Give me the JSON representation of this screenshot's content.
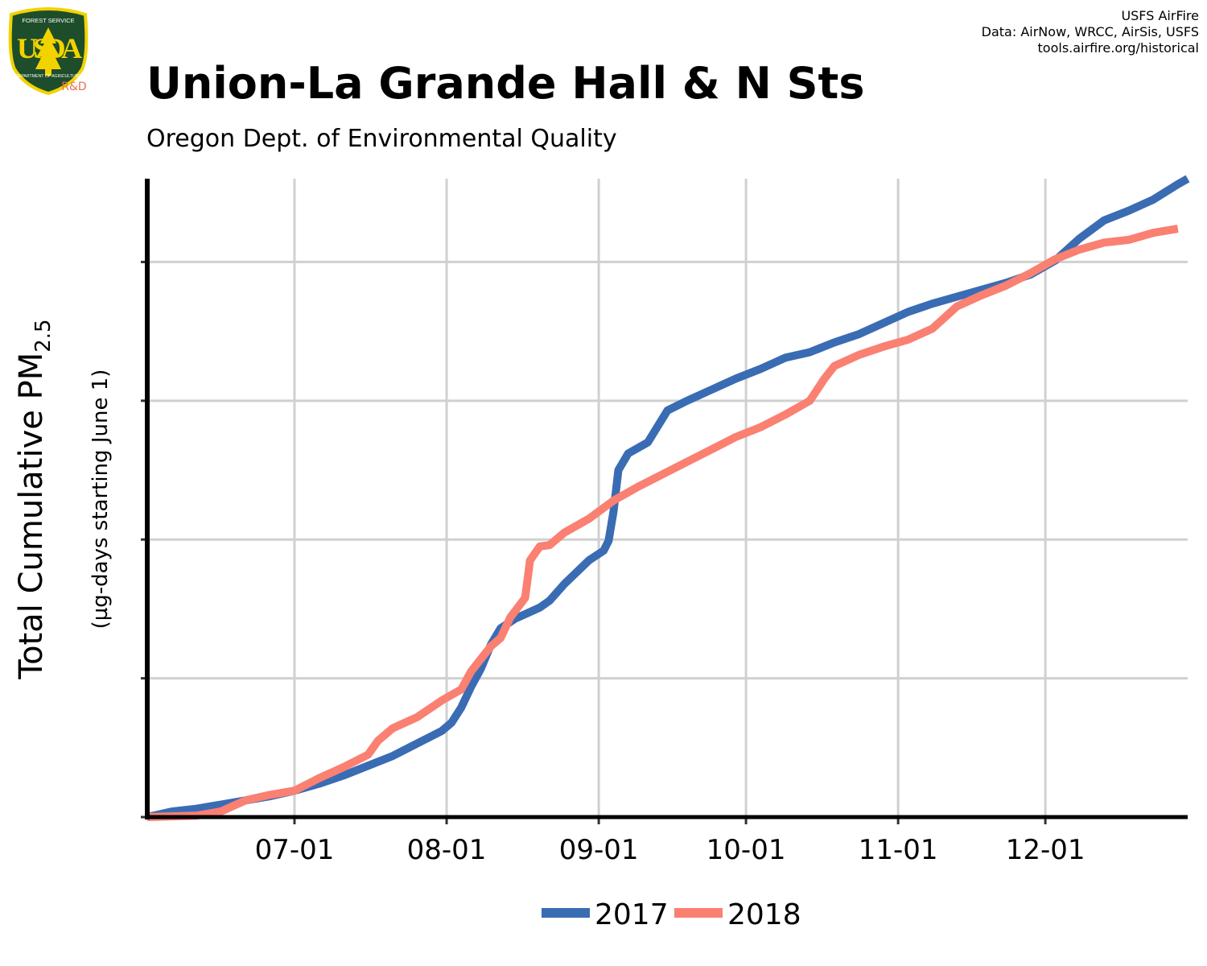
{
  "logo": {
    "top_text": "FOREST SERVICE",
    "letters": "USDA",
    "bottom_text": "DEPARTMENT OF AGRICULTURE",
    "badge": "R&D",
    "colors": {
      "shield": "#1e4d2b",
      "border": "#f2d300",
      "badge": "#e76f51"
    }
  },
  "credits": [
    "USFS AirFire",
    "Data: AirNow, WRCC, AirSis, USFS",
    "tools.airfire.org/historical"
  ],
  "title": "Union-La Grande Hall & N Sts",
  "subtitle": "Oregon Dept. of Environmental Quality",
  "chart_data": {
    "type": "line",
    "ylabel_main": "Total Cumulative PM",
    "ylabel_sub": "2.5",
    "ylabel_units": "(µg-days starting June 1)",
    "x_ticks": [
      "07-01",
      "08-01",
      "09-01",
      "10-01",
      "11-01",
      "12-01"
    ],
    "x_tick_days": [
      30,
      61,
      92,
      122,
      153,
      183
    ],
    "xlim": [
      0,
      212
    ],
    "ylim": [
      0,
      4600
    ],
    "y_gridlines": [
      0,
      1000,
      2000,
      3000,
      4000
    ],
    "grid": true,
    "legend": "bottom",
    "series": [
      {
        "name": "2017",
        "color": "#3a6cb4",
        "points": [
          [
            0,
            0
          ],
          [
            5,
            40
          ],
          [
            10,
            60
          ],
          [
            15,
            90
          ],
          [
            20,
            120
          ],
          [
            25,
            150
          ],
          [
            30,
            190
          ],
          [
            35,
            240
          ],
          [
            40,
            300
          ],
          [
            45,
            370
          ],
          [
            50,
            440
          ],
          [
            55,
            530
          ],
          [
            60,
            620
          ],
          [
            62,
            680
          ],
          [
            64,
            790
          ],
          [
            66,
            940
          ],
          [
            68,
            1070
          ],
          [
            70,
            1240
          ],
          [
            72,
            1360
          ],
          [
            75,
            1430
          ],
          [
            80,
            1510
          ],
          [
            82,
            1560
          ],
          [
            85,
            1680
          ],
          [
            90,
            1850
          ],
          [
            93,
            1920
          ],
          [
            94,
            1990
          ],
          [
            95,
            2200
          ],
          [
            96,
            2500
          ],
          [
            98,
            2620
          ],
          [
            102,
            2700
          ],
          [
            106,
            2930
          ],
          [
            110,
            3000
          ],
          [
            115,
            3080
          ],
          [
            120,
            3160
          ],
          [
            125,
            3230
          ],
          [
            130,
            3310
          ],
          [
            135,
            3350
          ],
          [
            140,
            3420
          ],
          [
            145,
            3480
          ],
          [
            150,
            3560
          ],
          [
            155,
            3640
          ],
          [
            160,
            3700
          ],
          [
            165,
            3750
          ],
          [
            170,
            3800
          ],
          [
            175,
            3850
          ],
          [
            180,
            3910
          ],
          [
            185,
            4010
          ],
          [
            190,
            4170
          ],
          [
            195,
            4300
          ],
          [
            200,
            4370
          ],
          [
            205,
            4450
          ],
          [
            210,
            4560
          ],
          [
            212,
            4600
          ]
        ]
      },
      {
        "name": "2018",
        "color": "#fa8072",
        "points": [
          [
            0,
            0
          ],
          [
            10,
            10
          ],
          [
            15,
            40
          ],
          [
            20,
            120
          ],
          [
            25,
            160
          ],
          [
            30,
            190
          ],
          [
            35,
            280
          ],
          [
            40,
            360
          ],
          [
            45,
            450
          ],
          [
            47,
            550
          ],
          [
            50,
            640
          ],
          [
            55,
            720
          ],
          [
            60,
            840
          ],
          [
            64,
            920
          ],
          [
            66,
            1050
          ],
          [
            70,
            1230
          ],
          [
            72,
            1290
          ],
          [
            74,
            1440
          ],
          [
            77,
            1580
          ],
          [
            78,
            1850
          ],
          [
            80,
            1950
          ],
          [
            82,
            1960
          ],
          [
            85,
            2050
          ],
          [
            90,
            2150
          ],
          [
            95,
            2280
          ],
          [
            100,
            2380
          ],
          [
            105,
            2470
          ],
          [
            110,
            2560
          ],
          [
            115,
            2650
          ],
          [
            120,
            2740
          ],
          [
            125,
            2810
          ],
          [
            130,
            2900
          ],
          [
            135,
            3000
          ],
          [
            138,
            3160
          ],
          [
            140,
            3250
          ],
          [
            145,
            3330
          ],
          [
            150,
            3390
          ],
          [
            155,
            3440
          ],
          [
            160,
            3520
          ],
          [
            165,
            3680
          ],
          [
            170,
            3760
          ],
          [
            175,
            3830
          ],
          [
            180,
            3920
          ],
          [
            185,
            4020
          ],
          [
            190,
            4090
          ],
          [
            195,
            4140
          ],
          [
            200,
            4160
          ],
          [
            205,
            4210
          ],
          [
            210,
            4240
          ]
        ]
      }
    ]
  }
}
